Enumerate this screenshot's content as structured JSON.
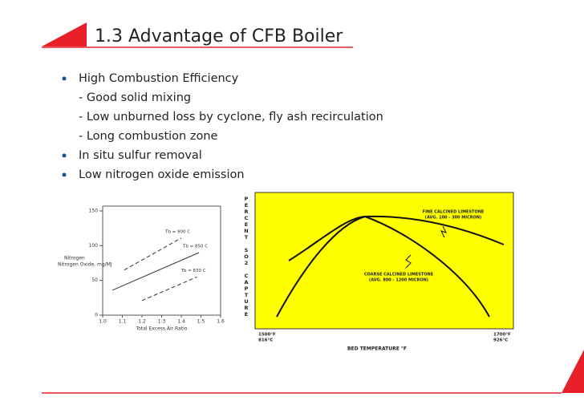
{
  "title": "1.3 Advantage of CFB Boiler",
  "bullets": [
    {
      "text": "High Combustion Efficiency",
      "items": [
        "- Good solid mixing",
        "- Low unburned loss by cyclone, fly ash recirculation",
        "- Long combustion zone"
      ]
    },
    {
      "text": "In situ sulfur removal",
      "items": []
    },
    {
      "text": "Low nitrogen oxide emission",
      "items": []
    }
  ],
  "figures": [
    {
      "type": "line",
      "xlabel": "Total Excess Air Ratio",
      "ylabel": "Nitrogen Oxide, mg/MJ",
      "ylabel_prefix": "Nitrogen",
      "xlim": [
        1,
        1.6
      ],
      "ylim": [
        0,
        150
      ],
      "xticks": [
        {
          "value": 1,
          "label": "1.0"
        },
        1.1,
        1.2,
        1.3,
        1.4,
        1.5,
        1.6
      ],
      "yticks": [
        0,
        50,
        100,
        150
      ],
      "series": [
        {
          "name": "Tb = 900 C",
          "dash": true,
          "x": [
            1.11,
            1.4
          ],
          "values": [
            65,
            111
          ]
        },
        {
          "name": "Tb = 850 C",
          "dash": false,
          "x": [
            1.05,
            1.49
          ],
          "values": [
            36,
            90
          ]
        },
        {
          "name": "Tb = 830 C",
          "dash": true,
          "x": [
            1.2,
            1.48
          ],
          "values": [
            21,
            55
          ]
        }
      ]
    },
    {
      "type": "diagram",
      "ylabel": "PERCENT SO2 CAPTURE",
      "xlabel": "BED TEMPERATURE °F",
      "left_label": [
        "1500°F",
        "816°C"
      ],
      "right_label": [
        "1700°F",
        "926°C"
      ],
      "fine": [
        "FINE CALCINED LIMESTONE",
        "(AVG. 100 - 300 MICRON)"
      ],
      "coarse": [
        "COARSE CALCINED LIMESTONE",
        "(AVG. 800 - 1200 MICRON)"
      ]
    }
  ]
}
